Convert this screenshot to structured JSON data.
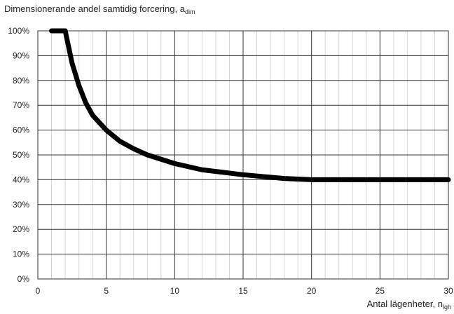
{
  "chart_data": {
    "type": "line",
    "ylabel": {
      "main": "Dimensionerande andel samtidig forcering, a",
      "sub": "dim"
    },
    "xlabel": {
      "main": "Antal lägenheter, n",
      "sub": "lgh"
    },
    "xlim": [
      0,
      30
    ],
    "ylim": [
      0,
      100
    ],
    "x_ticks": [
      0,
      5,
      10,
      15,
      20,
      25,
      30
    ],
    "x_tick_labels": [
      "0",
      "5",
      "10",
      "15",
      "20",
      "25",
      "30"
    ],
    "y_ticks": [
      0,
      10,
      20,
      30,
      40,
      50,
      60,
      70,
      80,
      90,
      100
    ],
    "y_tick_labels": [
      "0%",
      "10%",
      "20%",
      "30%",
      "40%",
      "50%",
      "60%",
      "70%",
      "80%",
      "90%",
      "100%"
    ],
    "minor_x_step": 1,
    "grid": true,
    "series": [
      {
        "x": [
          1,
          2,
          2.5,
          3,
          3.5,
          4,
          5,
          6,
          7,
          8,
          10,
          12,
          15,
          18,
          20,
          25,
          30
        ],
        "values": [
          100,
          100,
          87,
          78,
          71,
          66,
          60,
          55.5,
          52.5,
          50,
          46.5,
          44,
          42,
          40.5,
          40,
          40,
          40
        ],
        "color": "#000000"
      }
    ]
  }
}
